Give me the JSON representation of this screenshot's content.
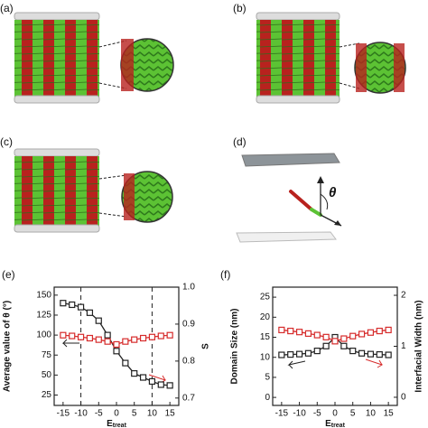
{
  "panels": {
    "a": "(a)",
    "b": "(b)",
    "c": "(c)",
    "d": "(d)",
    "theta": "θ"
  },
  "chart_data": [
    {
      "type": "line",
      "panel": "(e)",
      "xlabel": "E",
      "xlabel_sub": "treat",
      "ylabel": "Average value of θ (°)",
      "y2label": "S",
      "x": [
        -15,
        -12.5,
        -10,
        -7.5,
        -5,
        -2.5,
        0,
        2.5,
        5,
        7.5,
        10,
        12.5,
        15
      ],
      "xlim": [
        -17.5,
        17.5
      ],
      "xticks": [
        -15,
        -10,
        -5,
        0,
        5,
        10,
        15
      ],
      "ylim": [
        12,
        160
      ],
      "yticks": [
        25,
        50,
        75,
        100,
        125,
        150
      ],
      "y2lim": [
        0.68,
        1.0
      ],
      "y2ticks": [
        0.7,
        0.8,
        0.9,
        {
          "value": 1,
          "label": "1.0"
        }
      ],
      "vlines": [
        -10,
        10
      ],
      "series": [
        {
          "color": "#222222",
          "axis": "y",
          "values": [
            140,
            138,
            135,
            128,
            118,
            100,
            80,
            65,
            52,
            47,
            42,
            38,
            37
          ]
        },
        {
          "color": "#d62b2b",
          "axis": "y2",
          "values": [
            0.87,
            0.868,
            0.865,
            0.862,
            0.858,
            0.853,
            0.845,
            0.853,
            0.858,
            0.862,
            0.865,
            0.868,
            0.87
          ]
        }
      ]
    },
    {
      "type": "line",
      "panel": "(f)",
      "xlabel": "E",
      "xlabel_sub": "treat",
      "ylabel": "Domain Size (nm)",
      "y2label": "Interfacial Width (nm)",
      "x": [
        -15,
        -12.5,
        -10,
        -7.5,
        -5,
        -2.5,
        0,
        2.5,
        5,
        7.5,
        10,
        12.5,
        15
      ],
      "xlim": [
        -17.5,
        17.5
      ],
      "xticks": [
        -15,
        -10,
        -5,
        0,
        5,
        10,
        15
      ],
      "ylim": [
        -2,
        27.5
      ],
      "yticks": [
        0,
        5,
        10,
        15,
        20,
        25
      ],
      "y2lim": [
        -0.16,
        2.16
      ],
      "y2ticks": [
        0,
        1,
        2
      ],
      "series": [
        {
          "color": "#222222",
          "axis": "y",
          "values": [
            10.6,
            10.7,
            10.8,
            11.0,
            11.6,
            12.8,
            15.0,
            12.8,
            11.6,
            11.0,
            10.8,
            10.7,
            10.6
          ]
        },
        {
          "color": "#d62b2b",
          "axis": "y2",
          "values": [
            1.32,
            1.3,
            1.28,
            1.25,
            1.22,
            1.18,
            1.1,
            1.15,
            1.2,
            1.24,
            1.27,
            1.3,
            1.32
          ]
        }
      ]
    }
  ]
}
